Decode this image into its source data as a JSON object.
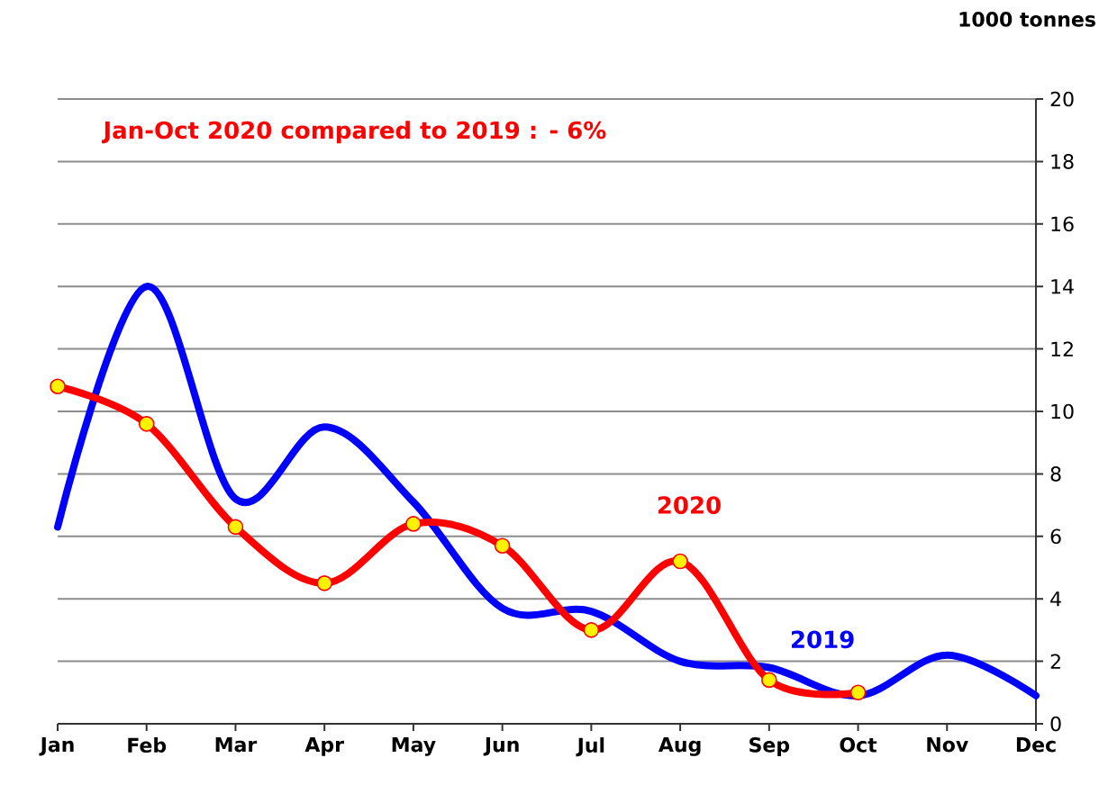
{
  "chart_data": {
    "type": "line",
    "ylabel": "1000 tonnes",
    "annotations": [
      "Jan-Oct 2020 compared to 2019 : - 6%"
    ],
    "categories": [
      "Jan",
      "Feb",
      "Mar",
      "Apr",
      "May",
      "Jun",
      "Jul",
      "Aug",
      "Sep",
      "Oct",
      "Nov",
      "Dec"
    ],
    "series": [
      {
        "name": "2019",
        "color": "#0000ff",
        "values": [
          6.3,
          14.0,
          7.2,
          9.5,
          7.1,
          3.7,
          3.6,
          2.0,
          1.8,
          0.9,
          2.2,
          0.9
        ],
        "marker": "none"
      },
      {
        "name": "2020",
        "color": "#ff0000",
        "values": [
          10.8,
          9.6,
          6.3,
          4.5,
          6.4,
          5.7,
          3.0,
          5.2,
          1.4,
          1.0,
          null,
          null
        ],
        "marker": "circle"
      }
    ],
    "ylim": [
      0,
      20
    ],
    "yticks": [
      0,
      2,
      4,
      6,
      8,
      10,
      12,
      14,
      16,
      18,
      20
    ],
    "grid": "y",
    "line_style": "solid"
  }
}
